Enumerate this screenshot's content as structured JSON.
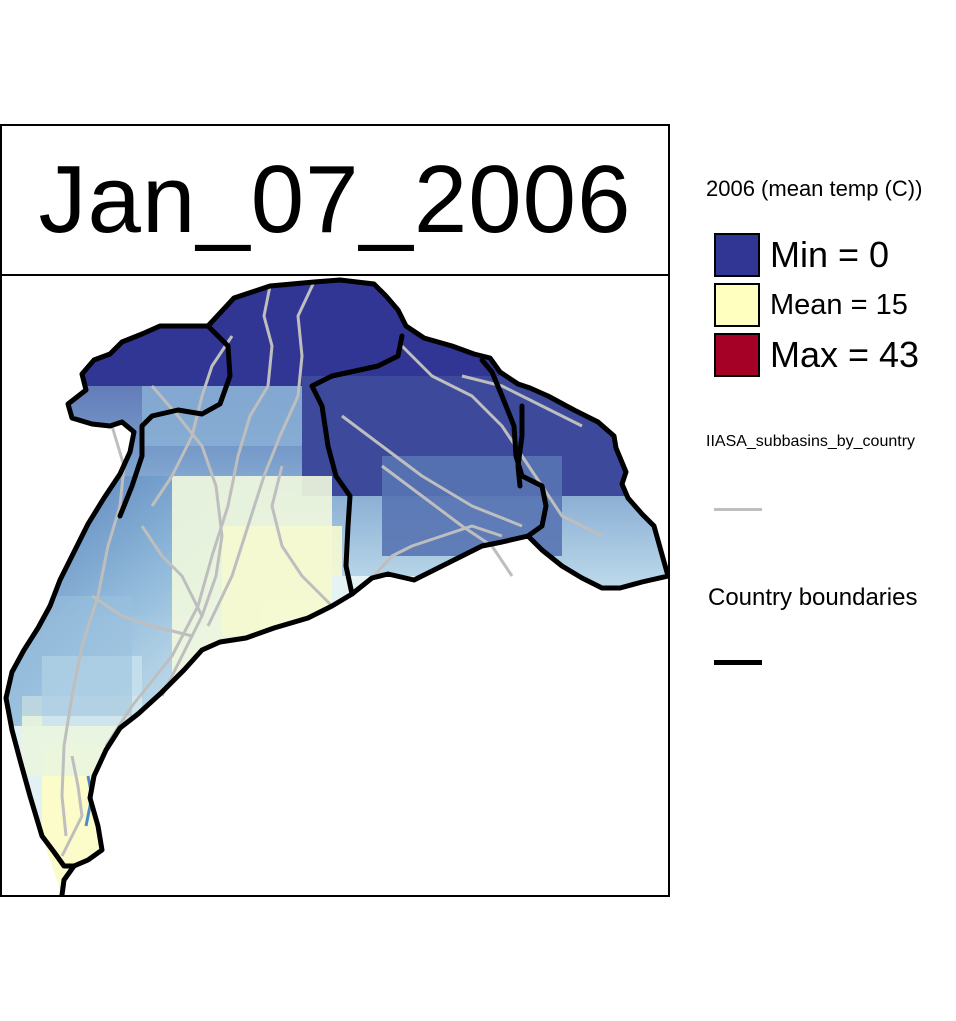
{
  "map": {
    "date_title": "Jan_07_2006",
    "legend": {
      "title": "2006 (mean temp (C))",
      "items": [
        {
          "label": "Min = 0",
          "color": "#313695"
        },
        {
          "label": "Mean = 15",
          "color": "#ffffbf"
        },
        {
          "label": "Max = 43",
          "color": "#a50026"
        }
      ],
      "subbasins_label": "IIASA_subbasins_by_country",
      "subbasins_color": "#bebebe",
      "country_label": "Country boundaries",
      "country_color": "#000000"
    }
  }
}
